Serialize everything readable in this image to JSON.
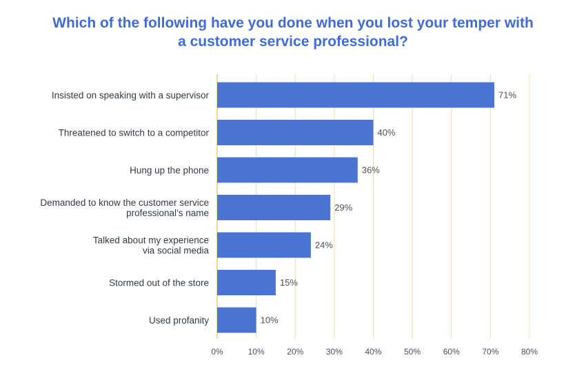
{
  "chart_data": {
    "type": "bar",
    "orientation": "horizontal",
    "title_lines": [
      "Which of the following have you done when you lost your temper with",
      "a customer service professional?"
    ],
    "categories": [
      [
        "Insisted on speaking with a supervisor"
      ],
      [
        "Threatened to switch to a competitor"
      ],
      [
        "Hung up the phone"
      ],
      [
        "Demanded to know the customer service",
        "professional’s name"
      ],
      [
        "Talked about my experience",
        "via social media"
      ],
      [
        "Stormed out of the store"
      ],
      [
        "Used profanity"
      ]
    ],
    "values": [
      71,
      40,
      36,
      29,
      24,
      15,
      10
    ],
    "value_labels": [
      "71%",
      "40%",
      "36%",
      "29%",
      "24%",
      "15%",
      "10%"
    ],
    "xlim": [
      0,
      80
    ],
    "x_ticks": [
      0,
      10,
      20,
      30,
      40,
      50,
      60,
      70,
      80
    ],
    "x_tick_labels": [
      "0%",
      "10%",
      "20%",
      "30%",
      "40%",
      "50%",
      "60%",
      "70%",
      "80%"
    ],
    "xlabel": "",
    "ylabel": "",
    "grid": "vertical",
    "legend": "none",
    "colors": {
      "bar": "#4a74d3",
      "title": "#3f6bd2",
      "grid": "#f0dfa8",
      "axis": "#e8c87a"
    }
  }
}
